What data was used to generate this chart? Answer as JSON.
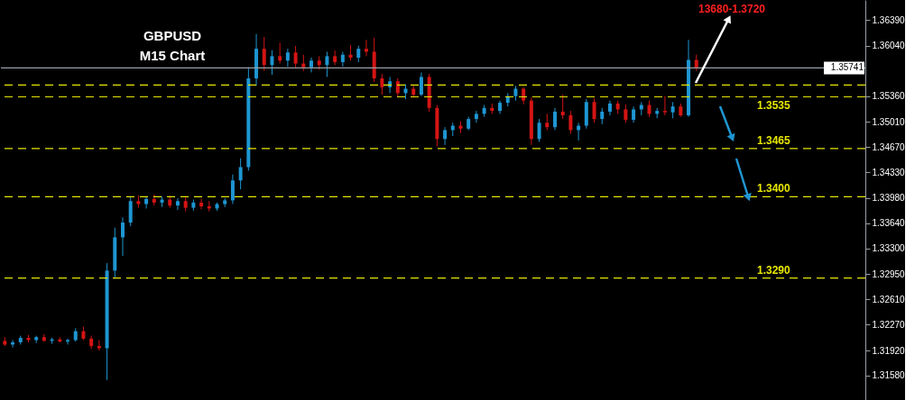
{
  "chart_data": {
    "type": "candlestick",
    "title": "GBPUSD",
    "subtitle": "M15 Chart",
    "annotations": [
      "13680-1.3720"
    ],
    "categories": [
      null,
      null,
      null,
      null,
      null,
      null,
      null,
      null,
      null,
      null,
      null,
      null,
      null,
      null,
      null,
      null,
      null,
      null,
      null,
      null,
      null,
      null,
      null,
      null,
      null,
      null,
      null,
      null,
      null,
      null,
      null,
      null,
      null,
      null,
      null,
      null,
      null,
      null,
      null,
      null,
      null,
      null,
      null,
      null,
      null,
      null,
      null,
      null,
      null,
      null,
      null,
      null,
      null,
      null,
      null,
      null,
      null,
      null,
      null,
      null,
      null,
      null,
      null,
      null,
      null,
      null,
      null,
      null,
      null,
      null,
      null,
      null,
      null,
      null,
      null,
      null,
      null,
      null,
      null,
      null,
      null,
      null,
      null,
      null,
      null,
      null,
      null,
      null,
      null,
      null,
      null,
      null,
      null,
      null,
      null,
      null,
      null,
      null,
      null,
      null,
      null,
      null,
      null,
      null,
      null,
      null,
      null,
      null,
      null,
      null
    ],
    "ohlc": [
      [
        1.3205,
        1.321,
        1.3198,
        1.32
      ],
      [
        1.32,
        1.3206,
        1.3196,
        1.3203
      ],
      [
        1.3203,
        1.3212,
        1.32,
        1.3209
      ],
      [
        1.3209,
        1.3213,
        1.3203,
        1.3206
      ],
      [
        1.3206,
        1.3212,
        1.3202,
        1.321
      ],
      [
        1.321,
        1.3214,
        1.3204,
        1.3205
      ],
      [
        1.3205,
        1.3209,
        1.3201,
        1.3207
      ],
      [
        1.3207,
        1.321,
        1.3203,
        1.3204
      ],
      [
        1.3204,
        1.3208,
        1.32,
        1.3206
      ],
      [
        1.3206,
        1.3222,
        1.3204,
        1.3218
      ],
      [
        1.3218,
        1.3224,
        1.3206,
        1.3208
      ],
      [
        1.3208,
        1.3212,
        1.3194,
        1.3198
      ],
      [
        1.3198,
        1.3206,
        1.3192,
        1.3195
      ],
      [
        1.3195,
        1.331,
        1.3152,
        1.33
      ],
      [
        1.33,
        1.3358,
        1.329,
        1.3345
      ],
      [
        1.3345,
        1.3372,
        1.332,
        1.3365
      ],
      [
        1.3365,
        1.34,
        1.336,
        1.3394
      ],
      [
        1.3394,
        1.3402,
        1.3385,
        1.339
      ],
      [
        1.339,
        1.34,
        1.3384,
        1.3397
      ],
      [
        1.3397,
        1.3403,
        1.3388,
        1.3392
      ],
      [
        1.3392,
        1.34,
        1.3386,
        1.3396
      ],
      [
        1.3396,
        1.3401,
        1.3385,
        1.3388
      ],
      [
        1.3388,
        1.3398,
        1.3382,
        1.3394
      ],
      [
        1.3394,
        1.3399,
        1.338,
        1.3385
      ],
      [
        1.3385,
        1.3396,
        1.3381,
        1.3392
      ],
      [
        1.3392,
        1.3397,
        1.3383,
        1.3387
      ],
      [
        1.3387,
        1.3394,
        1.338,
        1.3384
      ],
      [
        1.3384,
        1.3392,
        1.3381,
        1.339
      ],
      [
        1.339,
        1.3398,
        1.3386,
        1.3395
      ],
      [
        1.3395,
        1.343,
        1.339,
        1.3422
      ],
      [
        1.3422,
        1.3452,
        1.341,
        1.344
      ],
      [
        1.344,
        1.3575,
        1.3435,
        1.356
      ],
      [
        1.356,
        1.362,
        1.355,
        1.36
      ],
      [
        1.36,
        1.3616,
        1.357,
        1.3578
      ],
      [
        1.3578,
        1.3598,
        1.3565,
        1.359
      ],
      [
        1.359,
        1.3608,
        1.358,
        1.3584
      ],
      [
        1.3584,
        1.36,
        1.3576,
        1.3595
      ],
      [
        1.3595,
        1.3604,
        1.3575,
        1.358
      ],
      [
        1.358,
        1.3592,
        1.357,
        1.3575
      ],
      [
        1.3575,
        1.3588,
        1.3568,
        1.3584
      ],
      [
        1.3584,
        1.359,
        1.3572,
        1.3578
      ],
      [
        1.3578,
        1.3596,
        1.3562,
        1.359
      ],
      [
        1.359,
        1.3598,
        1.3578,
        1.3582
      ],
      [
        1.3582,
        1.3596,
        1.3576,
        1.3592
      ],
      [
        1.3592,
        1.3605,
        1.3584,
        1.3588
      ],
      [
        1.3588,
        1.3604,
        1.3582,
        1.36
      ],
      [
        1.36,
        1.3612,
        1.359,
        1.3596
      ],
      [
        1.3596,
        1.3615,
        1.3555,
        1.356
      ],
      [
        1.356,
        1.3566,
        1.3538,
        1.3548
      ],
      [
        1.3548,
        1.3562,
        1.354,
        1.3556
      ],
      [
        1.3556,
        1.356,
        1.3535,
        1.354
      ],
      [
        1.354,
        1.3552,
        1.3532,
        1.3546
      ],
      [
        1.3546,
        1.355,
        1.3534,
        1.3538
      ],
      [
        1.3538,
        1.3568,
        1.3536,
        1.3562
      ],
      [
        1.3562,
        1.3566,
        1.3515,
        1.352
      ],
      [
        1.352,
        1.3524,
        1.3468,
        1.3478
      ],
      [
        1.3478,
        1.3494,
        1.347,
        1.349
      ],
      [
        1.349,
        1.35,
        1.3482,
        1.3496
      ],
      [
        1.3496,
        1.3502,
        1.3486,
        1.3492
      ],
      [
        1.3492,
        1.3508,
        1.349,
        1.3505
      ],
      [
        1.3505,
        1.3516,
        1.35,
        1.3512
      ],
      [
        1.3512,
        1.3524,
        1.3508,
        1.352
      ],
      [
        1.352,
        1.3526,
        1.3512,
        1.3516
      ],
      [
        1.3516,
        1.353,
        1.3512,
        1.3527
      ],
      [
        1.3527,
        1.354,
        1.3522,
        1.3536
      ],
      [
        1.3536,
        1.355,
        1.353,
        1.3546
      ],
      [
        1.3546,
        1.3548,
        1.3525,
        1.353
      ],
      [
        1.353,
        1.3534,
        1.347,
        1.3478
      ],
      [
        1.3478,
        1.3505,
        1.3474,
        1.35
      ],
      [
        1.35,
        1.3512,
        1.349,
        1.3494
      ],
      [
        1.3494,
        1.352,
        1.349,
        1.3515
      ],
      [
        1.3515,
        1.3538,
        1.3505,
        1.351
      ],
      [
        1.351,
        1.3516,
        1.3485,
        1.349
      ],
      [
        1.349,
        1.35,
        1.3476,
        1.3496
      ],
      [
        1.3496,
        1.3532,
        1.3492,
        1.3528
      ],
      [
        1.3528,
        1.3533,
        1.35,
        1.3505
      ],
      [
        1.3505,
        1.352,
        1.3498,
        1.3515
      ],
      [
        1.3515,
        1.353,
        1.351,
        1.3526
      ],
      [
        1.3526,
        1.353,
        1.3512,
        1.3518
      ],
      [
        1.3518,
        1.3525,
        1.35,
        1.3504
      ],
      [
        1.3504,
        1.3522,
        1.35,
        1.3518
      ],
      [
        1.3518,
        1.3528,
        1.351,
        1.3524
      ],
      [
        1.3524,
        1.353,
        1.3508,
        1.3512
      ],
      [
        1.3512,
        1.352,
        1.3506,
        1.3516
      ],
      [
        1.3516,
        1.3536,
        1.351,
        1.3514
      ],
      [
        1.3514,
        1.3528,
        1.3506,
        1.3522
      ],
      [
        1.3522,
        1.3526,
        1.3508,
        1.351
      ],
      [
        1.351,
        1.3612,
        1.3508,
        1.3585
      ],
      [
        1.3585,
        1.3592,
        1.357,
        1.3574
      ],
      null,
      null,
      null,
      null,
      null,
      null,
      null,
      null,
      null,
      null,
      null,
      null,
      null,
      null,
      null,
      null,
      null,
      null,
      null,
      null,
      null
    ],
    "colors": [
      "#d41414",
      "#1e96d2",
      "#1e96d2",
      "#d41414",
      "#1e96d2",
      "#d41414",
      "#1e96d2",
      "#d41414",
      "#1e96d2",
      "#1e96d2",
      "#d41414",
      "#d41414",
      "#d41414",
      "#1e96d2",
      "#1e96d2",
      "#1e96d2",
      "#1e96d2",
      "#d41414",
      "#1e96d2",
      "#d41414",
      "#1e96d2",
      "#d41414",
      "#1e96d2",
      "#d41414",
      "#1e96d2",
      "#d41414",
      "#d41414",
      "#1e96d2",
      "#1e96d2",
      "#1e96d2",
      "#1e96d2",
      "#1e96d2",
      "#1e96d2",
      "#d41414",
      "#1e96d2",
      "#d41414",
      "#1e96d2",
      "#d41414",
      "#d41414",
      "#1e96d2",
      "#d41414",
      "#1e96d2",
      "#d41414",
      "#1e96d2",
      "#d41414",
      "#1e96d2",
      "#d41414",
      "#d41414",
      "#d41414",
      "#1e96d2",
      "#d41414",
      "#1e96d2",
      "#d41414",
      "#1e96d2",
      "#d41414",
      "#d41414",
      "#1e96d2",
      "#1e96d2",
      "#d41414",
      "#1e96d2",
      "#1e96d2",
      "#1e96d2",
      "#d41414",
      "#1e96d2",
      "#1e96d2",
      "#1e96d2",
      "#d41414",
      "#d41414",
      "#1e96d2",
      "#d41414",
      "#1e96d2",
      "#d41414",
      "#d41414",
      "#1e96d2",
      "#1e96d2",
      "#d41414",
      "#1e96d2",
      "#1e96d2",
      "#d41414",
      "#d41414",
      "#1e96d2",
      "#1e96d2",
      "#d41414",
      "#1e96d2",
      "#d41414",
      "#1e96d2",
      "#d41414",
      "#1e96d2",
      "#d41414",
      null,
      null,
      null,
      null,
      null,
      null,
      null,
      null,
      null,
      null,
      null,
      null,
      null,
      null,
      null,
      null,
      null,
      null,
      null,
      null,
      null
    ],
    "ylim": [
      1.3125,
      1.3666
    ],
    "yticks": [
      {
        "value": 1.3639,
        "label": "1.36390"
      },
      {
        "value": 1.3604,
        "label": "1.36040"
      },
      {
        "value": 1.3536,
        "label": "1.35360"
      },
      {
        "value": 1.3501,
        "label": "1.35010"
      },
      {
        "value": 1.3467,
        "label": "1.34670"
      },
      {
        "value": 1.3433,
        "label": "1.34330"
      },
      {
        "value": 1.3398,
        "label": "1.33980"
      },
      {
        "value": 1.3364,
        "label": "1.33640"
      },
      {
        "value": 1.333,
        "label": "1.33300"
      },
      {
        "value": 1.3295,
        "label": "1.32950"
      },
      {
        "value": 1.3261,
        "label": "1.32610"
      },
      {
        "value": 1.3227,
        "label": "1.32270"
      },
      {
        "value": 1.3192,
        "label": "1.31920"
      },
      {
        "value": 1.3158,
        "label": "1.31580"
      }
    ],
    "ref_lines": [
      {
        "axis": "y",
        "value": 1.35741,
        "label": "1.35741",
        "color": "#9aa0a6",
        "line_style": "solid"
      },
      {
        "axis": "y",
        "value": 1.3551,
        "label": null,
        "color": "#e6e600",
        "line_style": "dashed"
      },
      {
        "axis": "y",
        "value": 1.3535,
        "label": "1.3535",
        "color": "#e6e600",
        "line_style": "dashed"
      },
      {
        "axis": "y",
        "value": 1.3465,
        "label": "1.3465",
        "color": "#e6e600",
        "line_style": "dashed"
      },
      {
        "axis": "y",
        "value": 1.34,
        "label": "1.3400",
        "color": "#e6e600",
        "line_style": "dashed"
      },
      {
        "axis": "y",
        "value": 1.329,
        "label": "1.3290",
        "color": "#e6e600",
        "line_style": "dashed"
      }
    ],
    "tick_labels": "y",
    "grid": false
  }
}
